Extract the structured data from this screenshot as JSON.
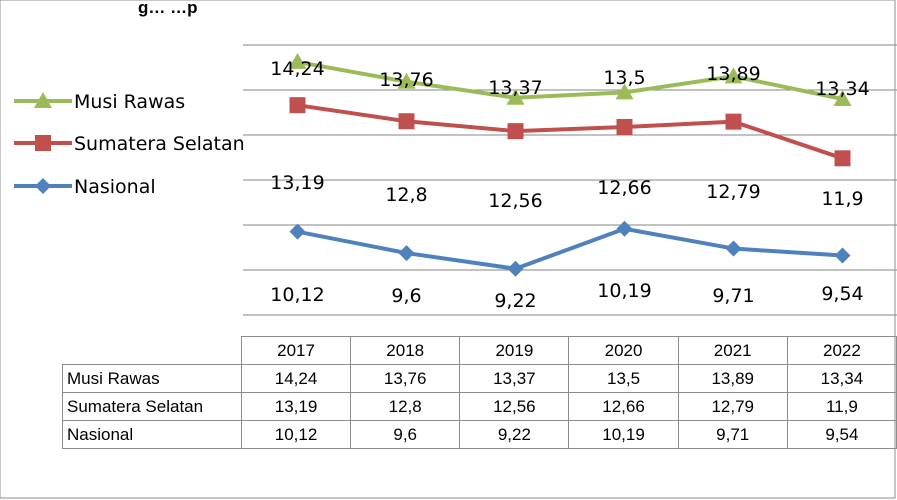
{
  "title_partial": "g… …p",
  "chart_data": {
    "type": "line",
    "categories": [
      "2017",
      "2018",
      "2019",
      "2020",
      "2021",
      "2022"
    ],
    "series": [
      {
        "name": "Musi Rawas",
        "values": [
          14.24,
          13.76,
          13.37,
          13.5,
          13.89,
          13.34
        ],
        "labels": [
          "14,24",
          "13,76",
          "13,37",
          "13,5",
          "13,89",
          "13,34"
        ],
        "color": "#9BBB59",
        "marker": "triangle"
      },
      {
        "name": "Sumatera Selatan",
        "values": [
          13.19,
          12.8,
          12.56,
          12.66,
          12.79,
          11.9
        ],
        "labels": [
          "13,19",
          "12,8",
          "12,56",
          "12,66",
          "12,79",
          "11,9"
        ],
        "color": "#C0504D",
        "marker": "square"
      },
      {
        "name": "Nasional",
        "values": [
          10.12,
          9.6,
          9.22,
          10.19,
          9.71,
          9.54
        ],
        "labels": [
          "10,12",
          "9,6",
          "9,22",
          "10,19",
          "9,71",
          "9,54"
        ],
        "color": "#4F81BD",
        "marker": "diamond"
      }
    ],
    "legend_placement": "left",
    "grid": true
  }
}
